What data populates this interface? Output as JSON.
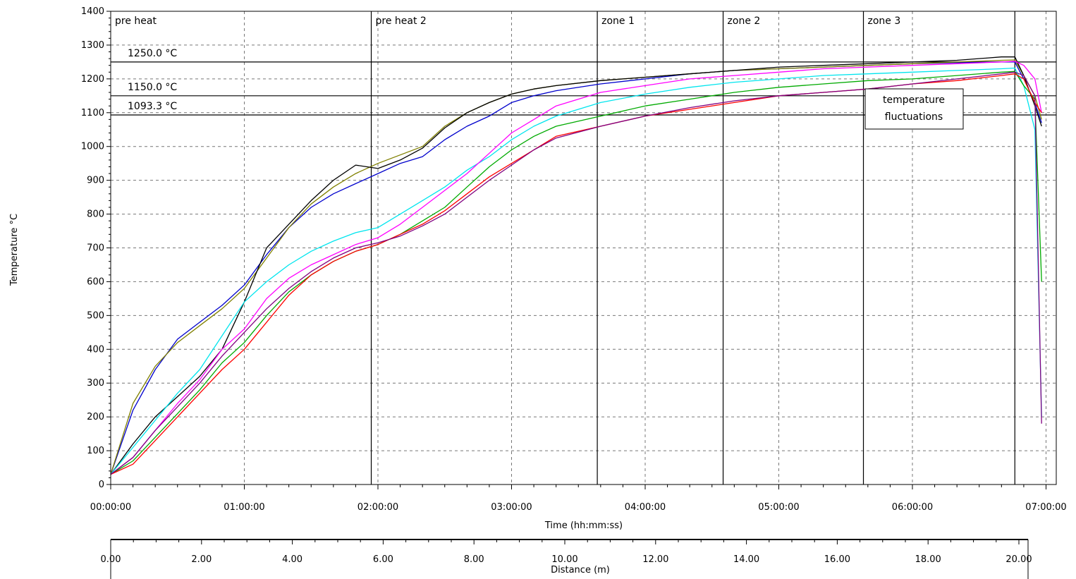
{
  "chart_data": {
    "type": "line",
    "ylabel": "Temperature °C",
    "xlabel": "Time (hh:mm:ss)",
    "x2label": "Distance (m)",
    "ylim": [
      0,
      1400
    ],
    "xlim_seconds": [
      0,
      25200
    ],
    "x2lim": [
      0,
      20
    ],
    "y_ticks": [
      0,
      100,
      200,
      300,
      400,
      500,
      600,
      700,
      800,
      900,
      1000,
      1100,
      1200,
      1300,
      1400
    ],
    "x_tick_labels": [
      "00:00:00",
      "01:00:00",
      "02:00:00",
      "03:00:00",
      "04:00:00",
      "05:00:00",
      "06:00:00",
      "07:00:00"
    ],
    "x2_tick_labels": [
      "0.00",
      "2.00",
      "4.00",
      "6.00",
      "8.00",
      "10.00",
      "12.00",
      "14.00",
      "16.00",
      "18.00",
      "20.00"
    ],
    "grid": true,
    "reference_lines": [
      {
        "value": 1250,
        "label": "1250.0 °C"
      },
      {
        "value": 1150,
        "label": "1150.0 °C"
      },
      {
        "value": 1093.3,
        "label": "1093.3 °C"
      }
    ],
    "zones": [
      {
        "label": "pre heat",
        "start_s": 0
      },
      {
        "label": "pre heat 2",
        "start_s": 7020
      },
      {
        "label": "zone 1",
        "start_s": 13110
      },
      {
        "label": "zone 2",
        "start_s": 16500
      },
      {
        "label": "zone 3",
        "start_s": 20280
      },
      {
        "label": "",
        "start_s": 24360
      }
    ],
    "annotation": {
      "text": [
        "temperature",
        "fluctuations"
      ]
    },
    "series": [
      {
        "color": "#0000cc",
        "points": [
          [
            0,
            30
          ],
          [
            600,
            220
          ],
          [
            1200,
            340
          ],
          [
            1800,
            430
          ],
          [
            2400,
            480
          ],
          [
            3000,
            530
          ],
          [
            3600,
            590
          ],
          [
            4200,
            680
          ],
          [
            4800,
            760
          ],
          [
            5400,
            820
          ],
          [
            6000,
            860
          ],
          [
            6600,
            890
          ],
          [
            7200,
            920
          ],
          [
            7800,
            950
          ],
          [
            8400,
            970
          ],
          [
            9000,
            1020
          ],
          [
            9600,
            1060
          ],
          [
            10200,
            1090
          ],
          [
            10800,
            1130
          ],
          [
            11400,
            1150
          ],
          [
            12000,
            1165
          ],
          [
            13200,
            1185
          ],
          [
            14400,
            1200
          ],
          [
            15600,
            1215
          ],
          [
            16800,
            1225
          ],
          [
            18000,
            1230
          ],
          [
            19200,
            1235
          ],
          [
            20400,
            1240
          ],
          [
            21600,
            1245
          ],
          [
            22800,
            1248
          ],
          [
            24000,
            1250
          ],
          [
            24360,
            1250
          ],
          [
            24600,
            1200
          ],
          [
            24900,
            1130
          ],
          [
            25080,
            1070
          ]
        ]
      },
      {
        "color": "#808000",
        "points": [
          [
            0,
            30
          ],
          [
            600,
            240
          ],
          [
            1200,
            350
          ],
          [
            1800,
            420
          ],
          [
            2400,
            470
          ],
          [
            3000,
            520
          ],
          [
            3600,
            580
          ],
          [
            4200,
            670
          ],
          [
            4800,
            760
          ],
          [
            5400,
            830
          ],
          [
            6000,
            880
          ],
          [
            6600,
            920
          ],
          [
            7200,
            950
          ],
          [
            7800,
            975
          ],
          [
            8400,
            1000
          ],
          [
            9000,
            1060
          ],
          [
            9600,
            1100
          ],
          [
            10200,
            1130
          ],
          [
            10800,
            1155
          ],
          [
            11400,
            1170
          ],
          [
            12000,
            1180
          ],
          [
            13200,
            1195
          ],
          [
            14400,
            1205
          ],
          [
            15600,
            1215
          ],
          [
            16800,
            1225
          ],
          [
            18000,
            1230
          ],
          [
            19200,
            1235
          ],
          [
            20400,
            1240
          ],
          [
            21600,
            1245
          ],
          [
            22800,
            1250
          ],
          [
            24000,
            1255
          ],
          [
            24360,
            1256
          ],
          [
            24600,
            1210
          ],
          [
            24900,
            1150
          ],
          [
            25080,
            1080
          ]
        ]
      },
      {
        "color": "#000000",
        "points": [
          [
            0,
            30
          ],
          [
            600,
            120
          ],
          [
            1200,
            200
          ],
          [
            1800,
            260
          ],
          [
            2400,
            320
          ],
          [
            3000,
            400
          ],
          [
            3600,
            540
          ],
          [
            4200,
            700
          ],
          [
            4800,
            770
          ],
          [
            5400,
            840
          ],
          [
            6000,
            900
          ],
          [
            6600,
            945
          ],
          [
            7200,
            935
          ],
          [
            7800,
            960
          ],
          [
            8400,
            995
          ],
          [
            9000,
            1055
          ],
          [
            9600,
            1100
          ],
          [
            10200,
            1130
          ],
          [
            10800,
            1155
          ],
          [
            11400,
            1170
          ],
          [
            12000,
            1180
          ],
          [
            13200,
            1195
          ],
          [
            14400,
            1205
          ],
          [
            15600,
            1215
          ],
          [
            16800,
            1225
          ],
          [
            18000,
            1235
          ],
          [
            19200,
            1240
          ],
          [
            20400,
            1245
          ],
          [
            21600,
            1250
          ],
          [
            22800,
            1255
          ],
          [
            24000,
            1265
          ],
          [
            24360,
            1265
          ],
          [
            24600,
            1210
          ],
          [
            24900,
            1120
          ],
          [
            25080,
            1060
          ]
        ]
      },
      {
        "color": "#00e5ee",
        "points": [
          [
            0,
            30
          ],
          [
            600,
            110
          ],
          [
            1200,
            190
          ],
          [
            1800,
            270
          ],
          [
            2400,
            340
          ],
          [
            3000,
            440
          ],
          [
            3600,
            540
          ],
          [
            4200,
            600
          ],
          [
            4800,
            650
          ],
          [
            5400,
            690
          ],
          [
            6000,
            720
          ],
          [
            6600,
            745
          ],
          [
            7200,
            760
          ],
          [
            7800,
            800
          ],
          [
            8400,
            840
          ],
          [
            9000,
            880
          ],
          [
            9600,
            930
          ],
          [
            10200,
            970
          ],
          [
            10800,
            1020
          ],
          [
            11400,
            1060
          ],
          [
            12000,
            1090
          ],
          [
            13200,
            1130
          ],
          [
            14400,
            1155
          ],
          [
            15600,
            1175
          ],
          [
            16800,
            1190
          ],
          [
            18000,
            1200
          ],
          [
            19200,
            1210
          ],
          [
            20400,
            1215
          ],
          [
            21600,
            1220
          ],
          [
            22800,
            1225
          ],
          [
            24000,
            1230
          ],
          [
            24360,
            1232
          ],
          [
            24600,
            1180
          ],
          [
            24900,
            1050
          ],
          [
            25080,
            200
          ]
        ]
      },
      {
        "color": "#ff00ff",
        "points": [
          [
            0,
            30
          ],
          [
            600,
            80
          ],
          [
            1200,
            160
          ],
          [
            1800,
            240
          ],
          [
            2400,
            310
          ],
          [
            3000,
            400
          ],
          [
            3600,
            460
          ],
          [
            4200,
            550
          ],
          [
            4800,
            610
          ],
          [
            5400,
            650
          ],
          [
            6000,
            680
          ],
          [
            6600,
            710
          ],
          [
            7200,
            730
          ],
          [
            7800,
            770
          ],
          [
            8400,
            820
          ],
          [
            9000,
            870
          ],
          [
            9600,
            920
          ],
          [
            10200,
            980
          ],
          [
            10800,
            1040
          ],
          [
            11400,
            1080
          ],
          [
            12000,
            1120
          ],
          [
            13200,
            1160
          ],
          [
            14400,
            1180
          ],
          [
            15600,
            1200
          ],
          [
            16800,
            1210
          ],
          [
            18000,
            1220
          ],
          [
            19200,
            1230
          ],
          [
            20400,
            1235
          ],
          [
            21600,
            1240
          ],
          [
            22800,
            1245
          ],
          [
            24000,
            1250
          ],
          [
            24360,
            1252
          ],
          [
            24600,
            1240
          ],
          [
            24900,
            1200
          ],
          [
            25080,
            1100
          ]
        ]
      },
      {
        "color": "#00aa00",
        "points": [
          [
            0,
            30
          ],
          [
            600,
            70
          ],
          [
            1200,
            140
          ],
          [
            1800,
            210
          ],
          [
            2400,
            280
          ],
          [
            3000,
            360
          ],
          [
            3600,
            420
          ],
          [
            4200,
            500
          ],
          [
            4800,
            570
          ],
          [
            5400,
            620
          ],
          [
            6000,
            660
          ],
          [
            6600,
            690
          ],
          [
            7200,
            710
          ],
          [
            7800,
            740
          ],
          [
            8400,
            780
          ],
          [
            9000,
            820
          ],
          [
            9600,
            880
          ],
          [
            10200,
            940
          ],
          [
            10800,
            990
          ],
          [
            11400,
            1030
          ],
          [
            12000,
            1060
          ],
          [
            13200,
            1090
          ],
          [
            14400,
            1120
          ],
          [
            15600,
            1140
          ],
          [
            16800,
            1160
          ],
          [
            18000,
            1175
          ],
          [
            19200,
            1185
          ],
          [
            20400,
            1195
          ],
          [
            21600,
            1200
          ],
          [
            22800,
            1210
          ],
          [
            24000,
            1220
          ],
          [
            24360,
            1222
          ],
          [
            24600,
            1180
          ],
          [
            24900,
            1140
          ],
          [
            25080,
            600
          ]
        ]
      },
      {
        "color": "#ff0000",
        "points": [
          [
            0,
            30
          ],
          [
            600,
            60
          ],
          [
            1200,
            130
          ],
          [
            1800,
            200
          ],
          [
            2400,
            270
          ],
          [
            3000,
            340
          ],
          [
            3600,
            400
          ],
          [
            4200,
            480
          ],
          [
            4800,
            560
          ],
          [
            5400,
            620
          ],
          [
            6000,
            660
          ],
          [
            6600,
            690
          ],
          [
            7200,
            710
          ],
          [
            7800,
            740
          ],
          [
            8400,
            770
          ],
          [
            9000,
            810
          ],
          [
            9600,
            860
          ],
          [
            10200,
            910
          ],
          [
            10800,
            950
          ],
          [
            11400,
            990
          ],
          [
            12000,
            1030
          ],
          [
            13200,
            1060
          ],
          [
            14400,
            1090
          ],
          [
            15600,
            1110
          ],
          [
            16800,
            1130
          ],
          [
            18000,
            1150
          ],
          [
            19200,
            1160
          ],
          [
            20400,
            1170
          ],
          [
            21600,
            1185
          ],
          [
            22800,
            1195
          ],
          [
            24000,
            1210
          ],
          [
            24360,
            1215
          ],
          [
            24600,
            1200
          ],
          [
            24900,
            1130
          ],
          [
            25080,
            1100
          ]
        ]
      },
      {
        "color": "#800080",
        "points": [
          [
            0,
            30
          ],
          [
            600,
            80
          ],
          [
            1200,
            160
          ],
          [
            1800,
            230
          ],
          [
            2400,
            300
          ],
          [
            3000,
            380
          ],
          [
            3600,
            450
          ],
          [
            4200,
            520
          ],
          [
            4800,
            580
          ],
          [
            5400,
            630
          ],
          [
            6000,
            670
          ],
          [
            6600,
            700
          ],
          [
            7200,
            715
          ],
          [
            7800,
            735
          ],
          [
            8400,
            765
          ],
          [
            9000,
            800
          ],
          [
            9600,
            850
          ],
          [
            10200,
            900
          ],
          [
            10800,
            945
          ],
          [
            11400,
            990
          ],
          [
            12000,
            1025
          ],
          [
            13200,
            1060
          ],
          [
            14400,
            1090
          ],
          [
            15600,
            1115
          ],
          [
            16800,
            1135
          ],
          [
            18000,
            1150
          ],
          [
            19200,
            1160
          ],
          [
            20400,
            1170
          ],
          [
            21600,
            1185
          ],
          [
            22800,
            1200
          ],
          [
            24000,
            1215
          ],
          [
            24360,
            1220
          ],
          [
            24600,
            1210
          ],
          [
            24900,
            1150
          ],
          [
            25080,
            180
          ]
        ]
      }
    ]
  }
}
